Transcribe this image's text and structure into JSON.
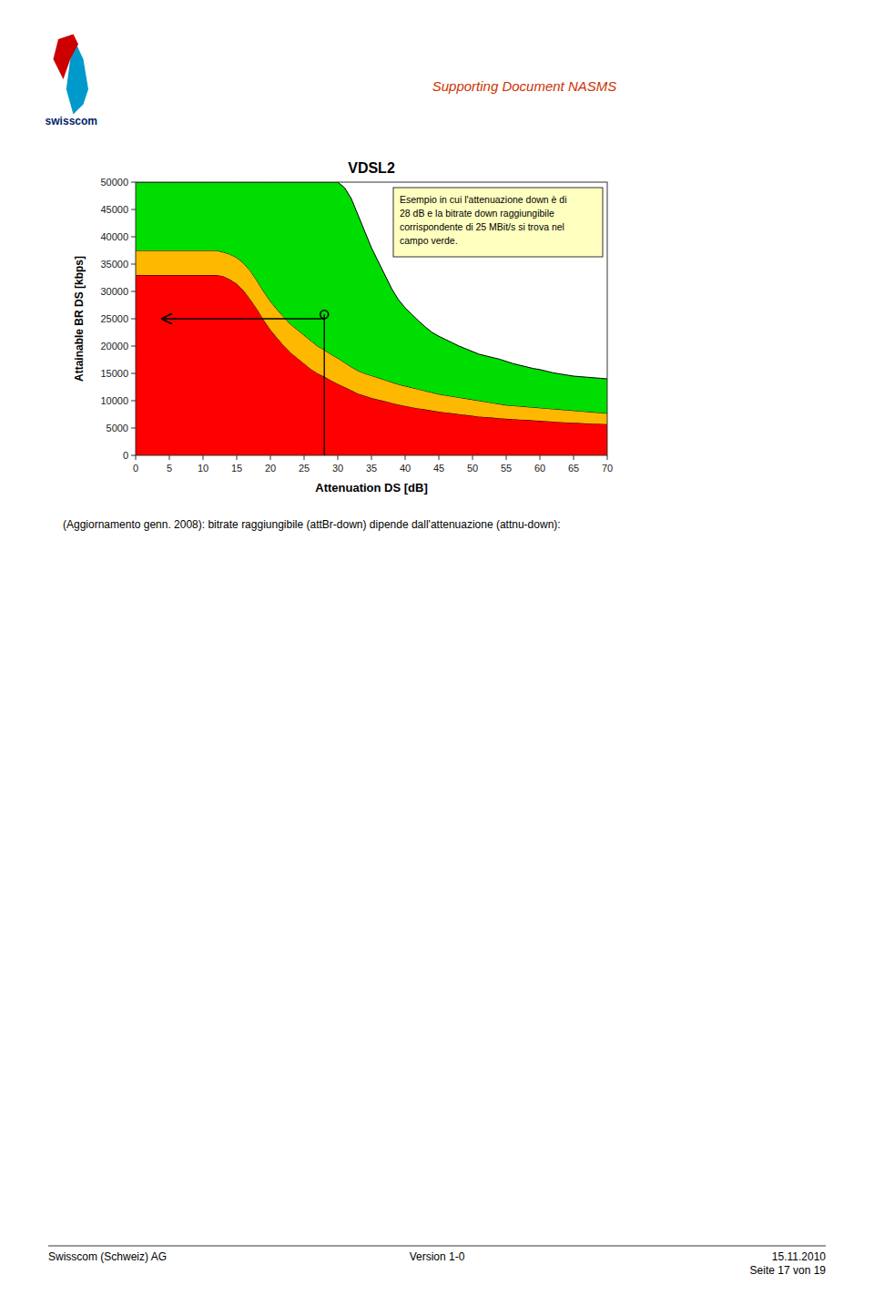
{
  "chart_data": {
    "type": "area",
    "title": "VDSL2",
    "x_label": "Attenuation DS [dB]",
    "y_label": "Attainable BR DS [kbps]",
    "xlim": [
      0,
      70
    ],
    "ylim": [
      0,
      50000
    ],
    "xticks": [
      0,
      5,
      10,
      15,
      20,
      25,
      30,
      35,
      40,
      45,
      50,
      55,
      60,
      65,
      70
    ],
    "yticks": [
      0,
      5000,
      10000,
      15000,
      20000,
      25000,
      30000,
      35000,
      40000,
      45000,
      50000
    ],
    "grid": false,
    "stacked": false,
    "x": [
      0,
      1,
      2,
      3,
      4,
      5,
      6,
      7,
      8,
      9,
      10,
      11,
      12,
      13,
      14,
      15,
      16,
      17,
      18,
      19,
      20,
      21,
      22,
      23,
      24,
      25,
      26,
      27,
      28,
      29,
      30,
      31,
      32,
      33,
      34,
      35,
      36,
      37,
      38,
      39,
      40,
      41,
      42,
      43,
      44,
      45,
      46,
      47,
      48,
      49,
      50,
      51,
      52,
      53,
      54,
      55,
      56,
      57,
      58,
      59,
      60,
      61,
      62,
      63,
      64,
      65,
      66,
      67,
      68,
      69,
      70
    ],
    "series": [
      {
        "color": "#FF0000",
        "values": [
          33000,
          33000,
          33000,
          33000,
          33000,
          33000,
          33000,
          33000,
          33000,
          33000,
          33000,
          33000,
          33000,
          32800,
          32200,
          31400,
          30200,
          28600,
          26800,
          24800,
          23000,
          21500,
          20100,
          18800,
          17800,
          16800,
          15800,
          15000,
          14400,
          13700,
          13100,
          12500,
          11900,
          11300,
          10900,
          10500,
          10200,
          9900,
          9600,
          9300,
          9050,
          8800,
          8600,
          8400,
          8200,
          8000,
          7850,
          7700,
          7550,
          7400,
          7250,
          7100,
          7000,
          6900,
          6800,
          6700,
          6620,
          6550,
          6480,
          6400,
          6320,
          6250,
          6180,
          6100,
          6020,
          5950,
          5900,
          5850,
          5800,
          5750,
          5700
        ]
      },
      {
        "color": "#FFB800",
        "values": [
          37500,
          37500,
          37500,
          37500,
          37500,
          37500,
          37500,
          37500,
          37500,
          37500,
          37500,
          37500,
          37500,
          37200,
          36800,
          36200,
          35200,
          33800,
          32000,
          30000,
          28200,
          26700,
          25300,
          24000,
          23000,
          22000,
          21000,
          20000,
          19300,
          18500,
          17800,
          17000,
          16200,
          15500,
          15000,
          14600,
          14200,
          13800,
          13400,
          13000,
          12700,
          12400,
          12100,
          11800,
          11500,
          11200,
          11000,
          10800,
          10600,
          10400,
          10200,
          10000,
          9800,
          9600,
          9400,
          9200,
          9100,
          9000,
          8900,
          8800,
          8700,
          8600,
          8500,
          8400,
          8300,
          8200,
          8100,
          8000,
          7900,
          7800,
          7700
        ]
      },
      {
        "color": "#00DD00",
        "values": [
          50000,
          50000,
          50000,
          50000,
          50000,
          50000,
          50000,
          50000,
          50000,
          50000,
          50000,
          50000,
          50000,
          50000,
          50000,
          50000,
          50000,
          50000,
          50000,
          50000,
          50000,
          50000,
          50000,
          50000,
          50000,
          50000,
          50000,
          50000,
          50000,
          50000,
          50000,
          49000,
          47000,
          44000,
          41000,
          38000,
          35500,
          33000,
          30500,
          28500,
          27000,
          25800,
          24600,
          23500,
          22500,
          21800,
          21200,
          20600,
          20000,
          19500,
          19000,
          18500,
          18200,
          17900,
          17600,
          17200,
          16800,
          16500,
          16200,
          15900,
          15700,
          15400,
          15100,
          14900,
          14700,
          14500,
          14400,
          14300,
          14200,
          14100,
          14000
        ]
      }
    ],
    "reference_line": {
      "x": 28,
      "y0": 0,
      "y1": 25800
    },
    "arrow": {
      "x_start": 28,
      "x_end": 4,
      "y": 25000
    },
    "point": {
      "x": 28,
      "y": 25800
    },
    "annotation": "Esempio in cui l'attenuazione down è di\n28 dB e la bitrate down raggiungibile\ncorrispondente di 25 MBit/s si trova nel\ncampo verde."
  },
  "header_text": "Supporting Document NASMS",
  "header_color": "#CC3300",
  "logo_text": "swisscom",
  "bottom_text": "(Aggiornamento genn. 2008): bitrate raggiungibile (attBr-down) dipende dall'attenuazione (attnu-down):",
  "footer_left": "Swisscom (Schweiz) AG",
  "footer_center": "Version 1-0",
  "footer_right": "15.11.2010\nSeite 17 von 19"
}
